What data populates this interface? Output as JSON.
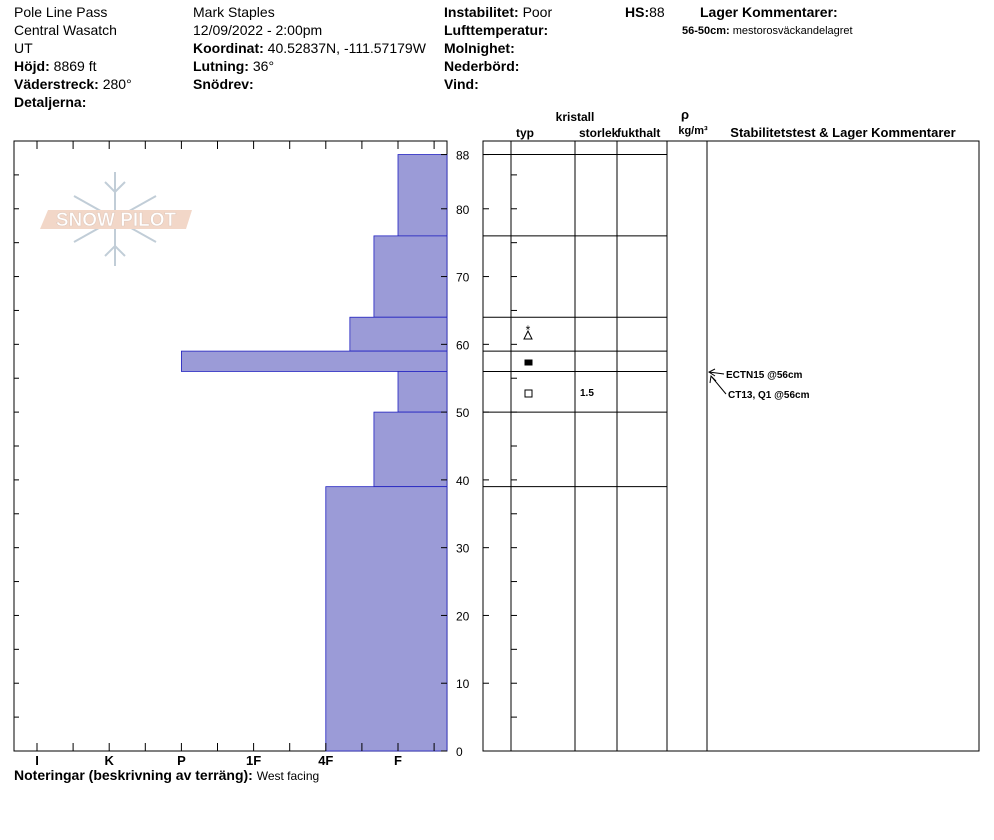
{
  "header": {
    "location": "Pole Line Pass",
    "range": "Central Wasatch",
    "state": "UT",
    "elevation": {
      "label": "Höjd:",
      "value": "8869 ft"
    },
    "aspect": {
      "label": "Väderstreck:",
      "value": "280°"
    },
    "details": {
      "label": "Detaljerna:"
    },
    "observer": "Mark Staples",
    "datetime": "12/09/2022 - 2:00pm",
    "coordinate": {
      "label": "Koordinat:",
      "value": "40.52837N, -111.57179W"
    },
    "slope": {
      "label": "Lutning:",
      "value": "36°"
    },
    "wind_loading": {
      "label": "Snödrev:"
    },
    "stability": {
      "label": "Instabilitet:",
      "value": "Poor"
    },
    "air_temp": {
      "label": "Lufttemperatur:"
    },
    "sky": {
      "label": "Molnighet:"
    },
    "precip": {
      "label": "Nederbörd:"
    },
    "wind": {
      "label": "Vind:"
    },
    "hs": {
      "label": "HS:",
      "value": 88
    },
    "layer_comments": {
      "label": "Lager Kommentarer:",
      "items": [
        {
          "range": "56-50cm:",
          "text": "mestorosväckandelagret"
        }
      ]
    }
  },
  "watermark": "SNOW PILOT",
  "profile": {
    "ylim": [
      0,
      90
    ],
    "yticks": [
      0,
      10,
      20,
      30,
      40,
      50,
      60,
      70,
      80,
      88
    ],
    "hardness_scale": [
      "I",
      "K",
      "P",
      "1F",
      "4F",
      "F"
    ],
    "layers": [
      {
        "top": 88,
        "bottom": 76,
        "hardness": "F"
      },
      {
        "top": 76,
        "bottom": 64,
        "hardness": "F+"
      },
      {
        "top": 64,
        "bottom": 59,
        "hardness": "4F-"
      },
      {
        "top": 59,
        "bottom": 56,
        "hardness": "P"
      },
      {
        "top": 56,
        "bottom": 50,
        "hardness": "F",
        "size": 1.5
      },
      {
        "top": 50,
        "bottom": 39,
        "hardness": "F+"
      },
      {
        "top": 39,
        "bottom": 0,
        "hardness": "4F"
      }
    ],
    "color": "#9b9bd7"
  },
  "table": {
    "type": "typ",
    "crystal": "kristall",
    "size": "storlek",
    "moisture": "fukthalt",
    "rho": "ρ",
    "density_unit": "kg/m³",
    "comments": "Stabilitetstest & Lager Kommentarer"
  },
  "stability_tests": [
    "ECTN15 @56cm",
    "CT13, Q1 @56cm"
  ],
  "notes": {
    "label": "Noteringar (beskrivning av terräng):",
    "value": "West facing"
  }
}
